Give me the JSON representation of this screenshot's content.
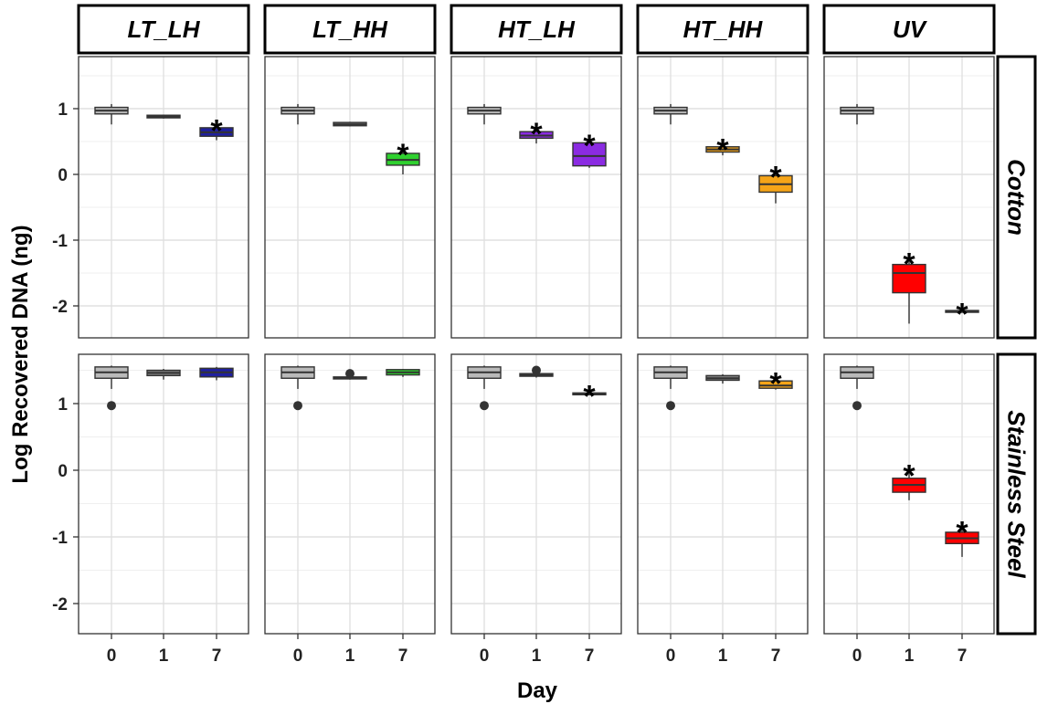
{
  "chart_data": {
    "type": "box",
    "title": "",
    "xlabel": "Day",
    "ylabel": "Log Recovered DNA (ng)",
    "facet_columns": [
      "LT_LH",
      "LT_HH",
      "HT_LH",
      "HT_HH",
      "UV"
    ],
    "facet_rows": [
      "Cotton",
      "Stainless Steel"
    ],
    "x_categories": [
      "0",
      "1",
      "7"
    ],
    "y_ticks": [
      "-2",
      "-1",
      "0",
      "1"
    ],
    "ylim": [
      -2.4,
      1.8
    ],
    "grid": true,
    "significance_symbol": "*",
    "colors": {
      "day0": "#b9b9b9",
      "day1": "#808080",
      "LT_LH": "#1f1f9e",
      "LT_HH": "#2fd12f",
      "HT_LH": "#8b2be2",
      "HT_HH": "#f5a418",
      "UV": "#ff0000"
    },
    "panels": [
      {
        "column": "LT_LH",
        "row": "Cotton",
        "boxes": [
          {
            "x": "0",
            "q1": 0.92,
            "median": 0.97,
            "q3": 1.02,
            "min": 0.76,
            "max": 1.07,
            "outliers": [],
            "color": "day0",
            "sig": false
          },
          {
            "x": "1",
            "q1": 0.86,
            "median": 0.88,
            "q3": 0.9,
            "min": 0.85,
            "max": 0.91,
            "outliers": [],
            "color": "day1",
            "sig": false
          },
          {
            "x": "7",
            "q1": 0.58,
            "median": 0.64,
            "q3": 0.71,
            "min": 0.52,
            "max": 0.73,
            "outliers": [],
            "color": "LT_LH",
            "sig": true
          }
        ]
      },
      {
        "column": "LT_HH",
        "row": "Cotton",
        "boxes": [
          {
            "x": "0",
            "q1": 0.92,
            "median": 0.97,
            "q3": 1.02,
            "min": 0.76,
            "max": 1.07,
            "outliers": [],
            "color": "day0",
            "sig": false
          },
          {
            "x": "1",
            "q1": 0.74,
            "median": 0.76,
            "q3": 0.79,
            "min": 0.73,
            "max": 0.8,
            "outliers": [],
            "color": "day1",
            "sig": false
          },
          {
            "x": "7",
            "q1": 0.14,
            "median": 0.22,
            "q3": 0.32,
            "min": 0.0,
            "max": 0.36,
            "outliers": [],
            "color": "LT_HH",
            "sig": true
          }
        ]
      },
      {
        "column": "HT_LH",
        "row": "Cotton",
        "boxes": [
          {
            "x": "0",
            "q1": 0.92,
            "median": 0.97,
            "q3": 1.02,
            "min": 0.76,
            "max": 1.07,
            "outliers": [],
            "color": "day0",
            "sig": false
          },
          {
            "x": "1",
            "q1": 0.55,
            "median": 0.59,
            "q3": 0.65,
            "min": 0.47,
            "max": 0.68,
            "outliers": [],
            "color": "HT_LH",
            "sig": true
          },
          {
            "x": "7",
            "q1": 0.13,
            "median": 0.28,
            "q3": 0.48,
            "min": 0.1,
            "max": 0.5,
            "outliers": [],
            "color": "HT_LH",
            "sig": true
          }
        ]
      },
      {
        "column": "HT_HH",
        "row": "Cotton",
        "boxes": [
          {
            "x": "0",
            "q1": 0.92,
            "median": 0.97,
            "q3": 1.02,
            "min": 0.76,
            "max": 1.07,
            "outliers": [],
            "color": "day0",
            "sig": false
          },
          {
            "x": "1",
            "q1": 0.34,
            "median": 0.38,
            "q3": 0.42,
            "min": 0.29,
            "max": 0.44,
            "outliers": [],
            "color": "HT_HH",
            "sig": true
          },
          {
            "x": "7",
            "q1": -0.27,
            "median": -0.15,
            "q3": -0.02,
            "min": -0.44,
            "max": 0.02,
            "outliers": [],
            "color": "HT_HH",
            "sig": true
          }
        ]
      },
      {
        "column": "UV",
        "row": "Cotton",
        "boxes": [
          {
            "x": "0",
            "q1": 0.92,
            "median": 0.97,
            "q3": 1.02,
            "min": 0.76,
            "max": 1.07,
            "outliers": [],
            "color": "day0",
            "sig": false
          },
          {
            "x": "1",
            "q1": -1.8,
            "median": -1.5,
            "q3": -1.37,
            "min": -2.27,
            "max": -1.3,
            "outliers": [],
            "color": "UV",
            "sig": true
          },
          {
            "x": "7",
            "q1": -2.09,
            "median": -2.08,
            "q3": -2.07,
            "min": -2.1,
            "max": -2.06,
            "outliers": [],
            "color": "UV",
            "sig": true
          }
        ]
      },
      {
        "column": "LT_LH",
        "row": "Stainless Steel",
        "boxes": [
          {
            "x": "0",
            "q1": 1.38,
            "median": 1.47,
            "q3": 1.55,
            "min": 1.22,
            "max": 1.57,
            "outliers": [
              0.97
            ],
            "color": "day0",
            "sig": false
          },
          {
            "x": "1",
            "q1": 1.42,
            "median": 1.46,
            "q3": 1.5,
            "min": 1.36,
            "max": 1.52,
            "outliers": [],
            "color": "day1",
            "sig": false
          },
          {
            "x": "7",
            "q1": 1.4,
            "median": 1.47,
            "q3": 1.53,
            "min": 1.35,
            "max": 1.55,
            "outliers": [],
            "color": "LT_LH",
            "sig": false
          }
        ]
      },
      {
        "column": "LT_HH",
        "row": "Stainless Steel",
        "boxes": [
          {
            "x": "0",
            "q1": 1.38,
            "median": 1.47,
            "q3": 1.55,
            "min": 1.22,
            "max": 1.57,
            "outliers": [
              0.97
            ],
            "color": "day0",
            "sig": false
          },
          {
            "x": "1",
            "q1": 1.37,
            "median": 1.38,
            "q3": 1.4,
            "min": 1.36,
            "max": 1.41,
            "outliers": [
              1.45
            ],
            "color": "day1",
            "sig": false
          },
          {
            "x": "7",
            "q1": 1.43,
            "median": 1.47,
            "q3": 1.51,
            "min": 1.4,
            "max": 1.52,
            "outliers": [],
            "color": "LT_HH",
            "sig": false
          }
        ]
      },
      {
        "column": "HT_LH",
        "row": "Stainless Steel",
        "boxes": [
          {
            "x": "0",
            "q1": 1.38,
            "median": 1.47,
            "q3": 1.55,
            "min": 1.22,
            "max": 1.57,
            "outliers": [
              0.97
            ],
            "color": "day0",
            "sig": false
          },
          {
            "x": "1",
            "q1": 1.41,
            "median": 1.43,
            "q3": 1.45,
            "min": 1.39,
            "max": 1.46,
            "outliers": [
              1.5
            ],
            "color": "day1",
            "sig": false
          },
          {
            "x": "7",
            "q1": 1.14,
            "median": 1.15,
            "q3": 1.16,
            "min": 1.13,
            "max": 1.17,
            "outliers": [],
            "color": "HT_LH",
            "sig": true
          }
        ]
      },
      {
        "column": "HT_HH",
        "row": "Stainless Steel",
        "boxes": [
          {
            "x": "0",
            "q1": 1.38,
            "median": 1.47,
            "q3": 1.55,
            "min": 1.22,
            "max": 1.57,
            "outliers": [
              0.97
            ],
            "color": "day0",
            "sig": false
          },
          {
            "x": "1",
            "q1": 1.35,
            "median": 1.38,
            "q3": 1.42,
            "min": 1.3,
            "max": 1.44,
            "outliers": [],
            "color": "day1",
            "sig": false
          },
          {
            "x": "7",
            "q1": 1.23,
            "median": 1.27,
            "q3": 1.34,
            "min": 1.21,
            "max": 1.36,
            "outliers": [],
            "color": "HT_HH",
            "sig": true
          }
        ]
      },
      {
        "column": "UV",
        "row": "Stainless Steel",
        "boxes": [
          {
            "x": "0",
            "q1": 1.38,
            "median": 1.47,
            "q3": 1.55,
            "min": 1.22,
            "max": 1.57,
            "outliers": [
              0.97
            ],
            "color": "day0",
            "sig": false
          },
          {
            "x": "1",
            "q1": -0.33,
            "median": -0.22,
            "q3": -0.12,
            "min": -0.45,
            "max": -0.02,
            "outliers": [],
            "color": "UV",
            "sig": true
          },
          {
            "x": "7",
            "q1": -1.1,
            "median": -1.02,
            "q3": -0.93,
            "min": -1.3,
            "max": -0.87,
            "outliers": [],
            "color": "UV",
            "sig": true
          }
        ]
      }
    ]
  }
}
